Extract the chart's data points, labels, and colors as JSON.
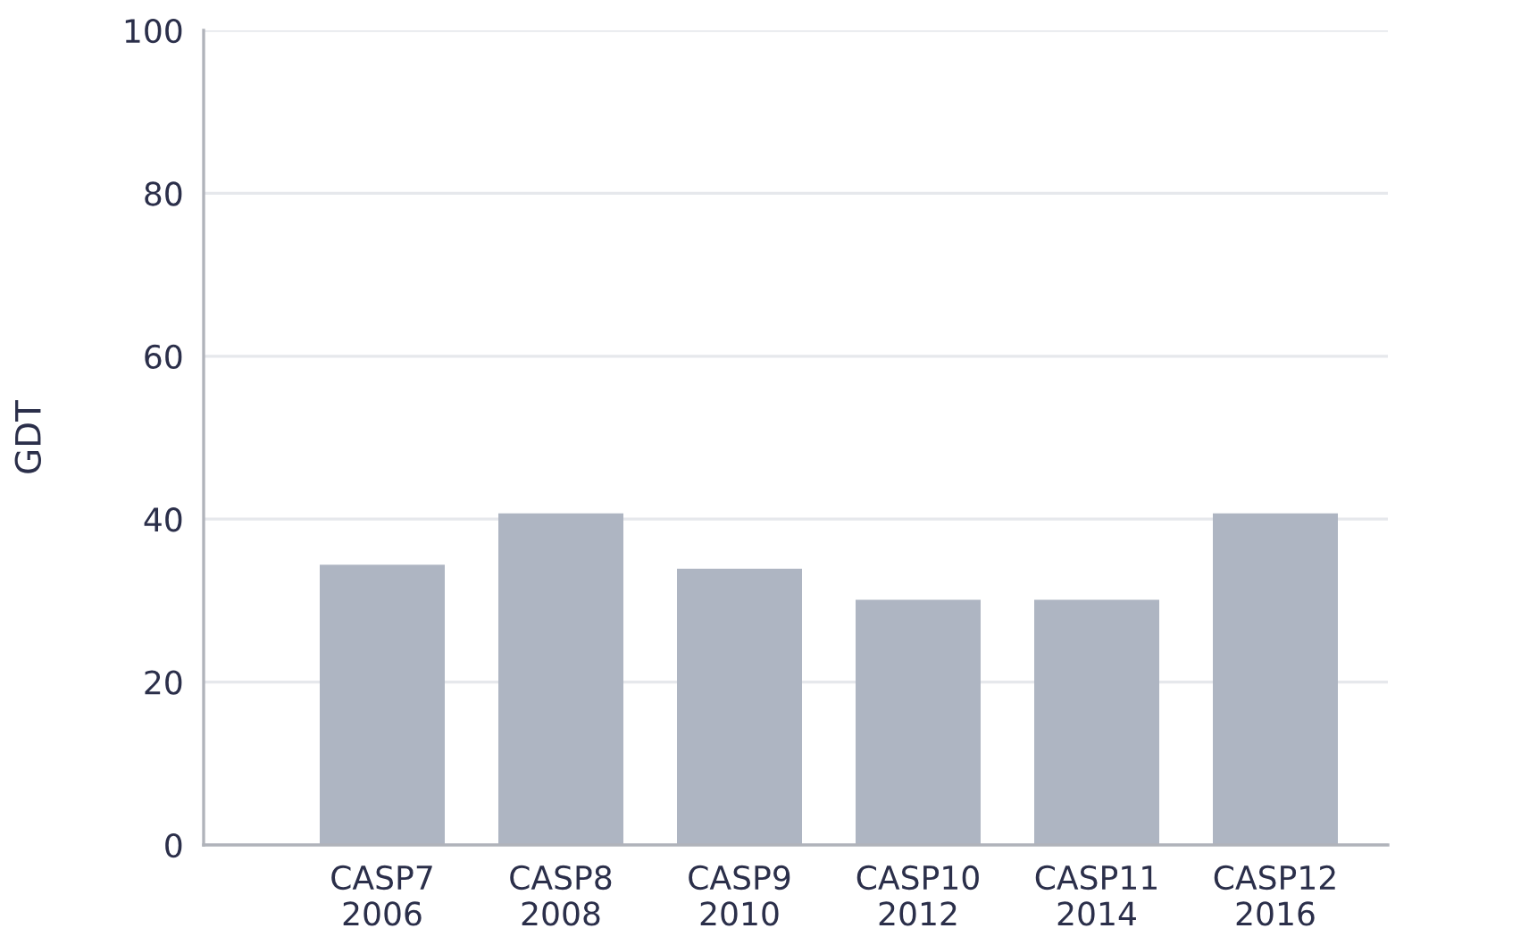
{
  "chart_data": {
    "type": "bar",
    "ylabel": "GDT",
    "categories": [
      "CASP7\n2006",
      "CASP8\n2008",
      "CASP9\n2010",
      "CASP10\n2012",
      "CASP11\n2014",
      "CASP12\n2016"
    ],
    "values": [
      34.4,
      40.7,
      33.9,
      30.1,
      30.1,
      40.7
    ],
    "color": "#aeb5c2",
    "ylim": [
      0,
      100
    ],
    "yticks": [
      0,
      20,
      40,
      60,
      80,
      100
    ],
    "grid": "y"
  }
}
